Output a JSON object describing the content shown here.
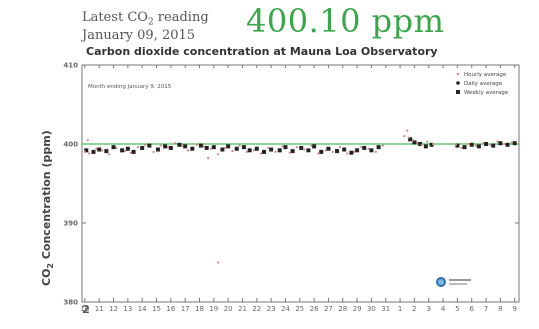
{
  "header": {
    "reading_label_prefix": "Latest CO",
    "reading_label_sub": "2",
    "reading_label_suffix": " reading",
    "reading_date": "January 09, 2015",
    "reading_value": "400.10 ppm"
  },
  "colors": {
    "accent": "#3aa84a",
    "reference_line": "#4cbf5a",
    "daily": "#222222",
    "hourly": "#cc8888"
  },
  "chart_data": {
    "type": "scatter",
    "title": "Carbon dioxide concentration at Mauna Loa Observatory",
    "ylabel_main": "CO",
    "ylabel_sub": "2",
    "ylabel_rest": " Concentration (ppm)",
    "annotation": "Month ending January 9, 2015",
    "ylim": [
      380,
      410
    ],
    "y_ticks": [
      "380",
      "390",
      "400",
      "410"
    ],
    "x_ticks": [
      "10",
      "11",
      "12",
      "13",
      "14",
      "15",
      "16",
      "17",
      "18",
      "19",
      "20",
      "21",
      "22",
      "23",
      "24",
      "25",
      "26",
      "27",
      "28",
      "29",
      "30",
      "31",
      "1",
      "2",
      "3",
      "4",
      "5",
      "6",
      "7",
      "8",
      "9"
    ],
    "x_first_bold": "2",
    "reference_line": 400,
    "legend": [
      "Hourly average",
      "Daily average",
      "Weekly average"
    ],
    "series": [
      {
        "name": "Daily average",
        "marker": "square",
        "x": [
          10.1,
          10.6,
          11.0,
          11.5,
          12.0,
          12.6,
          13.0,
          13.4,
          14.0,
          14.5,
          15.1,
          15.6,
          16.0,
          16.6,
          17.0,
          17.5,
          18.1,
          18.5,
          19.0,
          19.6,
          20.0,
          20.6,
          21.1,
          21.5,
          22.0,
          22.5,
          23.0,
          23.6,
          24.0,
          24.5,
          25.1,
          25.6,
          26.0,
          26.5,
          27.0,
          27.6,
          28.1,
          28.6,
          29.0,
          29.5,
          30.0,
          30.5,
          32.7,
          33.0,
          33.4,
          33.8,
          34.2,
          36.0,
          36.5,
          37.0,
          37.5,
          38.0,
          38.5,
          39.0,
          39.5,
          40.0
        ],
        "y": [
          399.2,
          399.0,
          399.3,
          399.1,
          399.6,
          399.2,
          399.4,
          399.0,
          399.5,
          399.8,
          399.3,
          399.7,
          399.5,
          399.9,
          399.7,
          399.4,
          399.8,
          399.5,
          399.6,
          399.3,
          399.7,
          399.4,
          399.6,
          399.2,
          399.4,
          399.0,
          399.3,
          399.2,
          399.6,
          399.1,
          399.5,
          399.2,
          399.7,
          399.0,
          399.4,
          399.1,
          399.3,
          398.9,
          399.2,
          399.5,
          399.2,
          399.6,
          400.6,
          400.2,
          400.0,
          399.7,
          399.9,
          399.8,
          399.6,
          399.9,
          399.7,
          400.0,
          399.8,
          400.1,
          399.9,
          400.1
        ]
      },
      {
        "name": "Hourly average",
        "marker": "dot",
        "x": [
          10.0,
          10.3,
          10.8,
          11.2,
          11.7,
          12.2,
          12.8,
          13.2,
          13.7,
          14.2,
          14.8,
          15.3,
          15.8,
          16.3,
          16.8,
          17.2,
          17.8,
          18.3,
          18.8,
          19.3,
          19.8,
          20.3,
          20.8,
          21.3,
          21.8,
          22.3,
          22.8,
          23.3,
          23.8,
          24.3,
          24.8,
          25.3,
          25.8,
          26.3,
          26.8,
          27.3,
          27.8,
          28.3,
          28.8,
          29.3,
          29.8,
          30.3,
          30.8,
          32.3,
          32.6,
          32.9,
          33.2,
          33.5,
          33.9,
          34.3,
          35.9,
          36.3,
          36.8,
          37.3,
          37.8,
          38.3,
          38.8,
          39.3,
          39.8,
          10.2,
          19.3,
          18.6,
          32.5
        ],
        "y": [
          399.0,
          398.8,
          399.4,
          399.2,
          398.7,
          399.5,
          399.1,
          398.9,
          399.6,
          399.9,
          399.0,
          399.8,
          399.6,
          400.1,
          399.8,
          399.2,
          399.9,
          399.7,
          399.4,
          398.7,
          399.5,
          399.1,
          399.8,
          399.0,
          399.2,
          398.8,
          399.5,
          399.0,
          399.7,
          398.9,
          399.6,
          399.3,
          399.8,
          398.8,
          399.2,
          399.0,
          399.6,
          398.8,
          399.0,
          399.6,
          399.4,
          399.0,
          399.8,
          401.0,
          400.8,
          400.5,
          400.2,
          399.9,
          400.3,
          400.0,
          399.9,
          399.5,
          400.0,
          399.8,
          400.1,
          399.9,
          400.3,
          400.0,
          400.2,
          400.5,
          385.0,
          398.2,
          401.7
        ]
      }
    ]
  }
}
